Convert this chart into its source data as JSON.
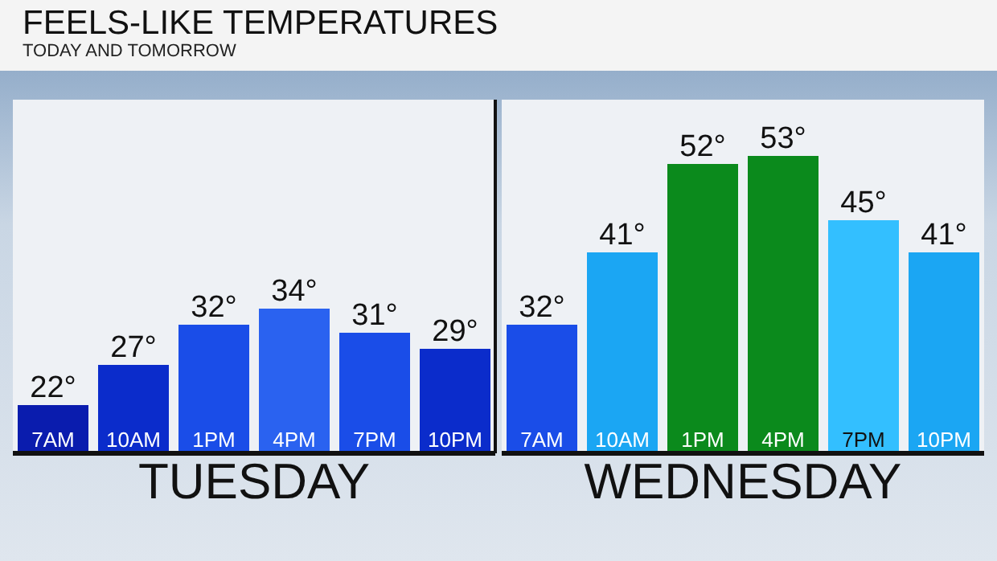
{
  "chart_data": [
    {
      "type": "bar",
      "title": "FEELS-LIKE TEMPERATURES",
      "subtitle": "TODAY AND TOMORROW",
      "xlabel": "TUESDAY",
      "categories": [
        "7AM",
        "10AM",
        "1PM",
        "4PM",
        "7PM",
        "10PM"
      ],
      "values": [
        22,
        27,
        32,
        34,
        31,
        29
      ],
      "value_labels": [
        "22°",
        "27°",
        "32°",
        "34°",
        "31°",
        "29°"
      ],
      "colors": [
        "#0a1cae",
        "#0b2ccb",
        "#1a4de8",
        "#2a62f0",
        "#1a4de8",
        "#0b2ccb"
      ],
      "ylim": [
        16,
        60
      ],
      "tick_labels": "x"
    },
    {
      "type": "bar",
      "xlabel": "WEDNESDAY",
      "categories": [
        "7AM",
        "10AM",
        "1PM",
        "4PM",
        "7PM",
        "10PM"
      ],
      "values": [
        32,
        41,
        52,
        53,
        45,
        41
      ],
      "value_labels": [
        "32°",
        "41°",
        "52°",
        "53°",
        "45°",
        "41°"
      ],
      "colors": [
        "#1a4de8",
        "#1ba6f3",
        "#0b8a1c",
        "#0b8a1c",
        "#33bfff",
        "#1ba6f3"
      ],
      "ylim": [
        16,
        60
      ],
      "tick_labels": "x"
    }
  ]
}
